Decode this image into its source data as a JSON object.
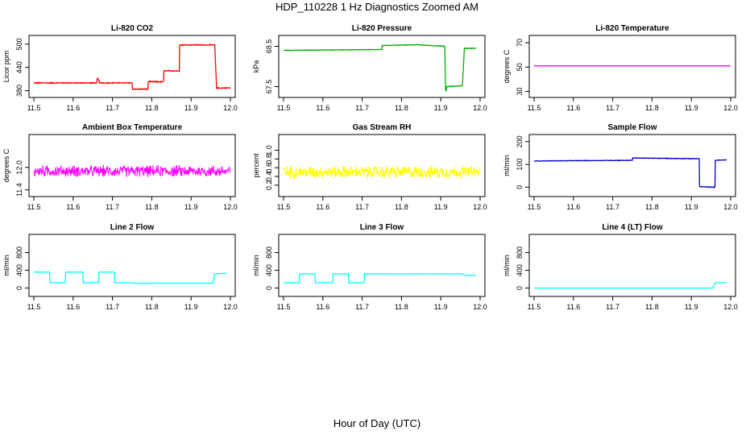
{
  "figure": {
    "title": "HDP_110228  1 Hz Diagnostics Zoomed AM",
    "xlabel": "Hour of Day (UTC)"
  },
  "chart_data": [
    {
      "type": "line",
      "title": "Li-820 CO2",
      "ylabel": "Licor ppm",
      "xlim": [
        11.5,
        12.0
      ],
      "ylim": [
        375,
        510
      ],
      "xticks": [
        11.5,
        11.6,
        11.7,
        11.8,
        11.9,
        12.0
      ],
      "xtick_labels": [
        "11.5",
        "11.6",
        "11.7",
        "11.8",
        "11.9",
        "12.0"
      ],
      "yticks": [
        380,
        440,
        500
      ],
      "ytick_labels": [
        "380",
        "440",
        "500"
      ],
      "color": "#ff0000",
      "noise": 1.5,
      "series": [
        {
          "x": [
            11.5,
            11.66,
            11.662,
            11.665,
            11.668,
            11.75,
            11.751,
            11.79,
            11.791,
            11.83,
            11.831,
            11.87,
            11.871,
            11.96,
            11.965,
            12.0
          ],
          "y": [
            400,
            400,
            412,
            407,
            400,
            400,
            384,
            384,
            403,
            403,
            431,
            431,
            498,
            498,
            387,
            387
          ]
        }
      ]
    },
    {
      "type": "line",
      "title": "Li-820 Pressure",
      "ylabel": "kPa",
      "xlim": [
        11.5,
        12.0
      ],
      "ylim": [
        67.35,
        68.65
      ],
      "xticks": [
        11.5,
        11.6,
        11.7,
        11.8,
        11.9,
        12.0
      ],
      "xtick_labels": [
        "11.5",
        "11.6",
        "11.7",
        "11.8",
        "11.9",
        "12.0"
      ],
      "yticks": [
        67.5,
        68.5
      ],
      "ytick_labels": [
        "67.5",
        "68.5"
      ],
      "color": "#00b000",
      "noise": 0.008,
      "series": [
        {
          "x": [
            11.5,
            11.75,
            11.751,
            11.84,
            11.91,
            11.912,
            11.914,
            11.915,
            11.955,
            11.96,
            11.962,
            11.99
          ],
          "y": [
            68.4,
            68.42,
            68.52,
            68.54,
            68.5,
            67.4,
            67.4,
            67.5,
            67.52,
            68.45,
            68.45,
            68.45
          ]
        }
      ]
    },
    {
      "type": "line",
      "title": "Li-820 Temperature",
      "ylabel": "degrees C",
      "xlim": [
        11.5,
        12.0
      ],
      "ylim": [
        29,
        72
      ],
      "xticks": [
        11.5,
        11.6,
        11.7,
        11.8,
        11.9,
        12.0
      ],
      "xtick_labels": [
        "11.5",
        "11.6",
        "11.7",
        "11.8",
        "11.9",
        "12.0"
      ],
      "yticks": [
        30,
        50,
        70
      ],
      "ytick_labels": [
        "30",
        "50",
        "70"
      ],
      "color": "#ff00ff",
      "noise": 0,
      "series": [
        {
          "x": [
            11.5,
            12.0
          ],
          "y": [
            51,
            51
          ]
        }
      ]
    },
    {
      "type": "line",
      "title": "Ambient Box Temperature",
      "ylabel": "degrees C",
      "xlim": [
        11.5,
        12.0
      ],
      "ylim": [
        11.35,
        12.75
      ],
      "xticks": [
        11.5,
        11.6,
        11.7,
        11.8,
        11.9,
        12.0
      ],
      "xtick_labels": [
        "11.5",
        "11.6",
        "11.7",
        "11.8",
        "11.9",
        "12.0"
      ],
      "yticks": [
        11.4,
        12.0
      ],
      "ytick_labels": [
        "11.4",
        "12.0"
      ],
      "color": "#ff00ff",
      "noise": 0.18,
      "series": [
        {
          "x": [
            11.5,
            12.0
          ],
          "y": [
            11.9,
            11.9
          ]
        }
      ]
    },
    {
      "type": "line",
      "title": "Gas Stream RH",
      "ylabel": "percent",
      "xlim": [
        11.5,
        12.0
      ],
      "ylim": [
        0.05,
        1.25
      ],
      "xticks": [
        11.5,
        11.6,
        11.7,
        11.8,
        11.9,
        12.0
      ],
      "xtick_labels": [
        "11.5",
        "11.6",
        "11.7",
        "11.8",
        "11.9",
        "12.0"
      ],
      "yticks": [
        0.2,
        0.4,
        0.6,
        0.8,
        1.0
      ],
      "ytick_labels": [
        "0.2",
        "0.4",
        "0.6",
        "0.8",
        "1.0"
      ],
      "color": "#ffff00",
      "noise": 0.17,
      "series": [
        {
          "x": [
            11.5,
            12.0
          ],
          "y": [
            0.5,
            0.5
          ]
        }
      ]
    },
    {
      "type": "line",
      "title": "Sample Flow",
      "ylabel": "ml/min",
      "xlim": [
        11.5,
        12.0
      ],
      "ylim": [
        -20,
        210
      ],
      "xticks": [
        11.5,
        11.6,
        11.7,
        11.8,
        11.9,
        12.0
      ],
      "xtick_labels": [
        "11.5",
        "11.6",
        "11.7",
        "11.8",
        "11.9",
        "12.0"
      ],
      "yticks": [
        0,
        100,
        200
      ],
      "ytick_labels": [
        "0",
        "100",
        "200"
      ],
      "color": "#0000cc",
      "noise": 1.5,
      "series": [
        {
          "x": [
            11.5,
            11.75,
            11.751,
            11.92,
            11.921,
            11.955,
            11.956,
            11.96,
            11.961,
            11.99
          ],
          "y": [
            115,
            118,
            128,
            125,
            2,
            0,
            0,
            0,
            118,
            120
          ]
        }
      ]
    },
    {
      "type": "line",
      "title": "Line 2 Flow",
      "ylabel": "ml/min",
      "xlim": [
        11.5,
        12.0
      ],
      "ylim": [
        -80,
        1100
      ],
      "xticks": [
        11.5,
        11.6,
        11.7,
        11.8,
        11.9,
        12.0
      ],
      "xtick_labels": [
        "11.5",
        "11.6",
        "11.7",
        "11.8",
        "11.9",
        "12.0"
      ],
      "yticks": [
        0,
        400,
        800
      ],
      "ytick_labels": [
        "0",
        "400",
        "800"
      ],
      "color": "#00ffff",
      "noise": 3,
      "series": [
        {
          "x": [
            11.5,
            11.54,
            11.541,
            11.58,
            11.581,
            11.625,
            11.626,
            11.665,
            11.666,
            11.705,
            11.706,
            11.75,
            11.751,
            11.955,
            11.96,
            11.99
          ],
          "y": [
            360,
            360,
            120,
            120,
            360,
            360,
            120,
            120,
            360,
            360,
            120,
            120,
            110,
            110,
            320,
            335
          ]
        }
      ]
    },
    {
      "type": "line",
      "title": "Line 3 Flow",
      "ylabel": "ml/min",
      "xlim": [
        11.5,
        12.0
      ],
      "ylim": [
        -80,
        1100
      ],
      "xticks": [
        11.5,
        11.6,
        11.7,
        11.8,
        11.9,
        12.0
      ],
      "xtick_labels": [
        "11.5",
        "11.6",
        "11.7",
        "11.8",
        "11.9",
        "12.0"
      ],
      "yticks": [
        0,
        400,
        800
      ],
      "ytick_labels": [
        "0",
        "400",
        "800"
      ],
      "color": "#00ffff",
      "noise": 3,
      "series": [
        {
          "x": [
            11.5,
            11.54,
            11.541,
            11.58,
            11.581,
            11.625,
            11.626,
            11.665,
            11.666,
            11.705,
            11.706,
            11.955,
            11.96,
            11.99
          ],
          "y": [
            120,
            120,
            320,
            320,
            120,
            120,
            320,
            320,
            120,
            120,
            320,
            320,
            285,
            285
          ]
        }
      ]
    },
    {
      "type": "line",
      "title": "Line 4 (LT) Flow",
      "ylabel": "ml/min",
      "xlim": [
        11.5,
        12.0
      ],
      "ylim": [
        -80,
        1100
      ],
      "xticks": [
        11.5,
        11.6,
        11.7,
        11.8,
        11.9,
        12.0
      ],
      "xtick_labels": [
        "11.5",
        "11.6",
        "11.7",
        "11.8",
        "11.9",
        "12.0"
      ],
      "yticks": [
        0,
        400,
        800
      ],
      "ytick_labels": [
        "0",
        "400",
        "800"
      ],
      "color": "#00ffff",
      "noise": 1,
      "series": [
        {
          "x": [
            11.5,
            11.955,
            11.96,
            11.99
          ],
          "y": [
            0,
            0,
            120,
            120
          ]
        }
      ]
    }
  ]
}
